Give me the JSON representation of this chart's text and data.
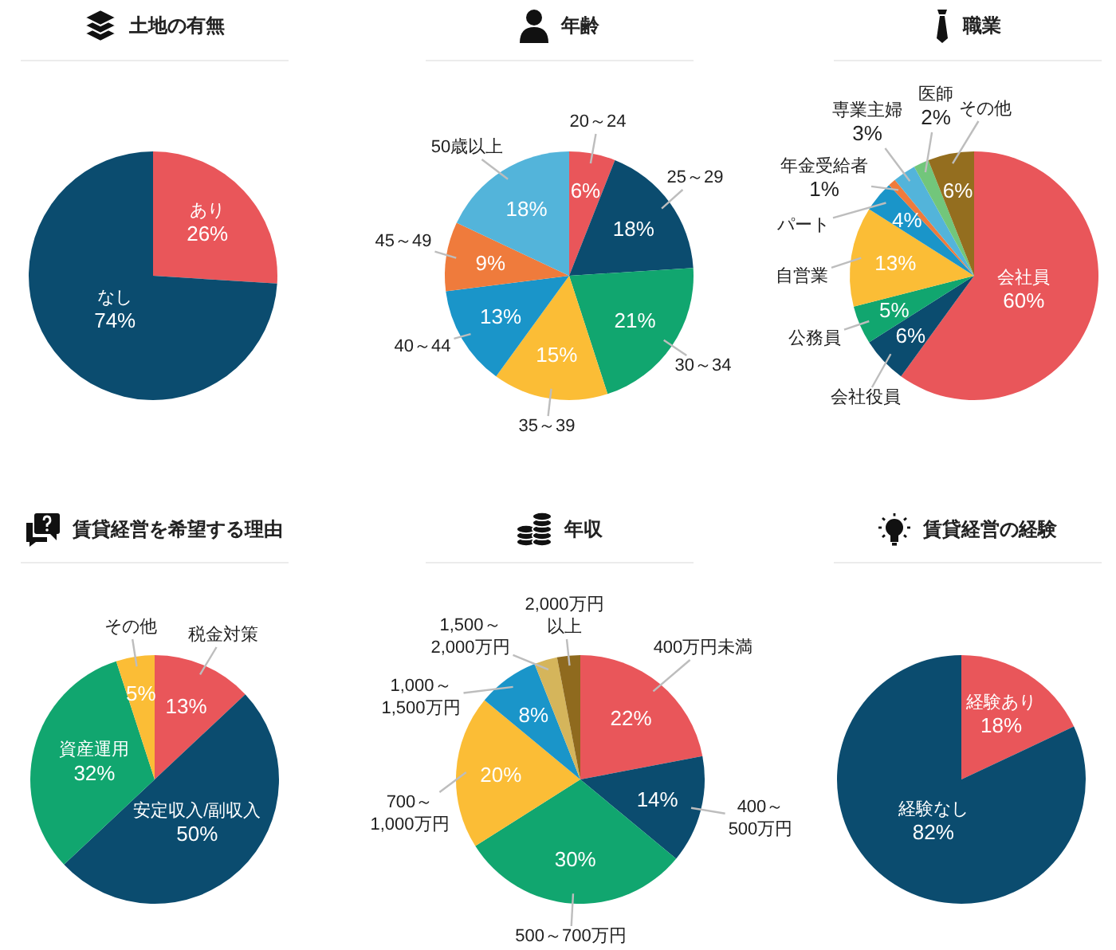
{
  "chart_data": [
    {
      "type": "pie",
      "title": "土地の有無",
      "categories": [
        "あり",
        "なし"
      ],
      "values": [
        26,
        74
      ],
      "colors": [
        "#e9565a",
        "#0b4c6f"
      ],
      "value_labels": [
        "26%",
        "74%"
      ]
    },
    {
      "type": "pie",
      "title": "年齢",
      "categories": [
        "20～24",
        "25～29",
        "30～34",
        "35～39",
        "40～44",
        "45～49",
        "50歳以上"
      ],
      "values": [
        6,
        18,
        21,
        15,
        13,
        9,
        18
      ],
      "colors": [
        "#e9565a",
        "#0b4c6f",
        "#11a66f",
        "#fbbd36",
        "#1a95c9",
        "#ef7b3c",
        "#53b4da"
      ],
      "value_labels": [
        "6%",
        "18%",
        "21%",
        "15%",
        "13%",
        "9%",
        "18%"
      ]
    },
    {
      "type": "pie",
      "title": "職業",
      "categories": [
        "会社員",
        "会社役員",
        "公務員",
        "自営業",
        "パート",
        "年金受給者",
        "専業主婦",
        "医師",
        "その他"
      ],
      "values": [
        60,
        6,
        5,
        13,
        4,
        1,
        3,
        2,
        6
      ],
      "colors": [
        "#e9565a",
        "#0b4c6f",
        "#11a66f",
        "#fbbd36",
        "#1a95c9",
        "#ef7b3c",
        "#53b4da",
        "#72c67b",
        "#946e1f"
      ],
      "value_labels": [
        "60%",
        "6%",
        "5%",
        "13%",
        "4%",
        "1%",
        "3%",
        "2%",
        "6%"
      ]
    },
    {
      "type": "pie",
      "title": "賃貸経営を希望する理由",
      "categories": [
        "税金対策",
        "安定収入/副収入",
        "資産運用",
        "その他"
      ],
      "values": [
        13,
        50,
        32,
        5
      ],
      "colors": [
        "#e9565a",
        "#0b4c6f",
        "#11a66f",
        "#fbbd36"
      ],
      "value_labels": [
        "13%",
        "50%",
        "32%",
        "5%"
      ]
    },
    {
      "type": "pie",
      "title": "年収",
      "categories": [
        "400万円未満",
        "400～500万円",
        "500～700万円",
        "700～1,000万円",
        "1,000～1,500万円",
        "1,500～2,000万円",
        "2,000万円以上"
      ],
      "values": [
        22,
        14,
        30,
        20,
        8,
        3,
        3
      ],
      "colors": [
        "#e9565a",
        "#0b4c6f",
        "#11a66f",
        "#fbbd36",
        "#1a95c9",
        "#d5b55b",
        "#8f6a1e"
      ],
      "value_labels": [
        "22%",
        "14%",
        "30%",
        "20%",
        "8%",
        null,
        null
      ]
    },
    {
      "type": "pie",
      "title": "賃貸経営の経験",
      "categories": [
        "経験あり",
        "経験なし"
      ],
      "values": [
        18,
        82
      ],
      "colors": [
        "#e9565a",
        "#0b4c6f"
      ],
      "value_labels": [
        "18%",
        "82%"
      ]
    }
  ]
}
